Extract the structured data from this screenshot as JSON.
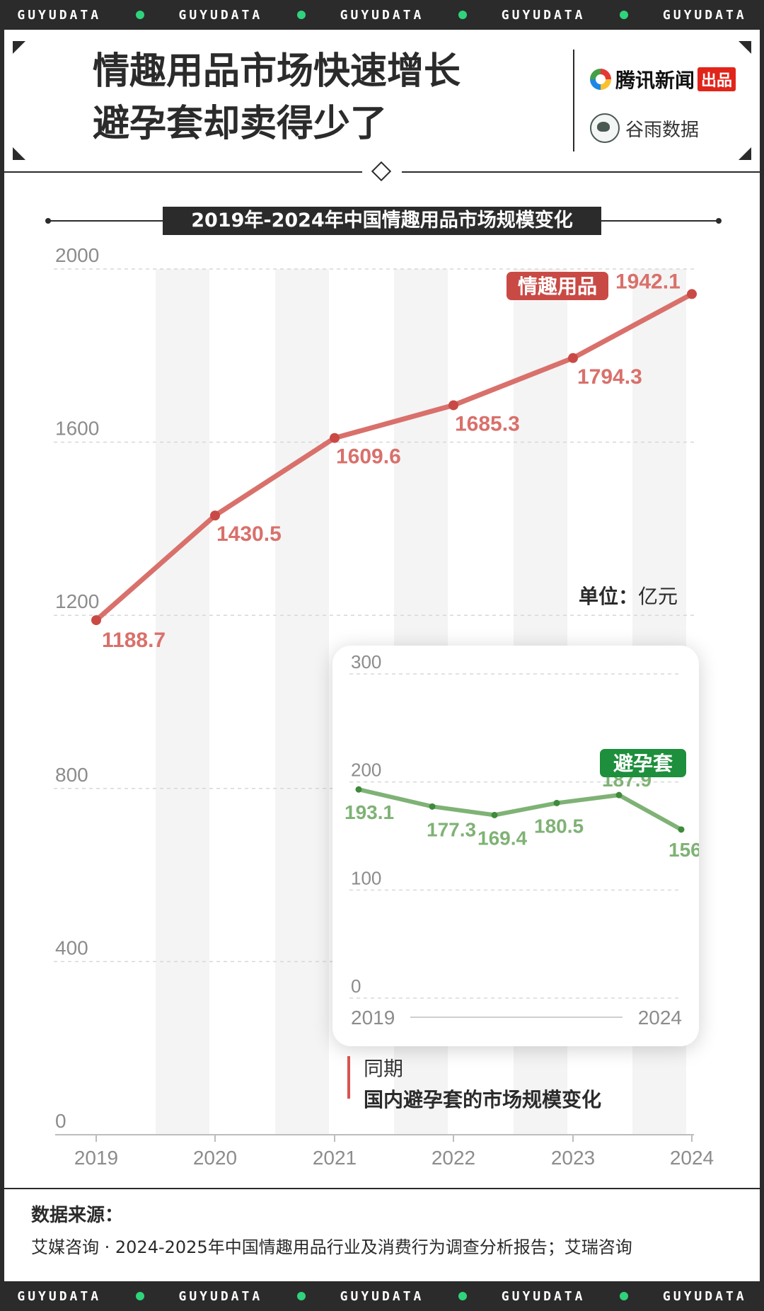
{
  "ticker": {
    "word": "GUYUDATA",
    "count": 5
  },
  "header": {
    "title_line1": "情趣用品市场快速增长",
    "title_line2": "避孕套却卖得少了",
    "brand1_name": "腾讯新闻",
    "brand1_tag": "出品",
    "brand2_name": "谷雨数据"
  },
  "unit": {
    "label": "单位：",
    "value": "亿元"
  },
  "note": {
    "line1": "同期",
    "line2": "国内避孕套的市场规模变化"
  },
  "source": {
    "label": "数据来源：",
    "text": "艾媒咨询 · 2024-2025年中国情趣用品行业及消费行为调查分析报告；艾瑞咨询"
  },
  "colors": {
    "main": "#d9706b",
    "main_dot": "#c94a45",
    "tag_red": "#c94a45",
    "inset": "#7fb275",
    "inset_dot": "#3f8a3c",
    "tag_green": "#1e8f3c"
  },
  "chart_data": [
    {
      "type": "line",
      "title": "2019年-2024年中国情趣用品市场规模变化",
      "categories": [
        "2019",
        "2020",
        "2021",
        "2022",
        "2023",
        "2024"
      ],
      "series": [
        {
          "name": "情趣用品",
          "values": [
            1188.7,
            1430.5,
            1609.6,
            1685.3,
            1794.3,
            1942.1
          ],
          "labels": [
            "1188.7",
            "1430.5",
            "1609.6",
            "1685.3",
            "1794.3",
            "1942.1"
          ]
        }
      ],
      "yticks": [
        "0",
        "400",
        "800",
        "1200",
        "1600",
        "2000"
      ],
      "ylim": [
        0,
        2000
      ],
      "grid": true,
      "alternating_column_bands": true
    },
    {
      "type": "line",
      "categories": [
        "2019",
        "2020",
        "2021",
        "2022",
        "2023",
        "2024"
      ],
      "xtick_labels": [
        "2019",
        "2024"
      ],
      "series": [
        {
          "name": "避孕套",
          "values": [
            193.1,
            177.3,
            169.4,
            180.5,
            187.9,
            156
          ],
          "labels": [
            "193.1",
            "177.3",
            "169.4",
            "180.5",
            "187.9",
            "156"
          ]
        }
      ],
      "yticks": [
        "0",
        "100",
        "200",
        "300"
      ],
      "ylim": [
        0,
        300
      ],
      "grid": true
    }
  ]
}
